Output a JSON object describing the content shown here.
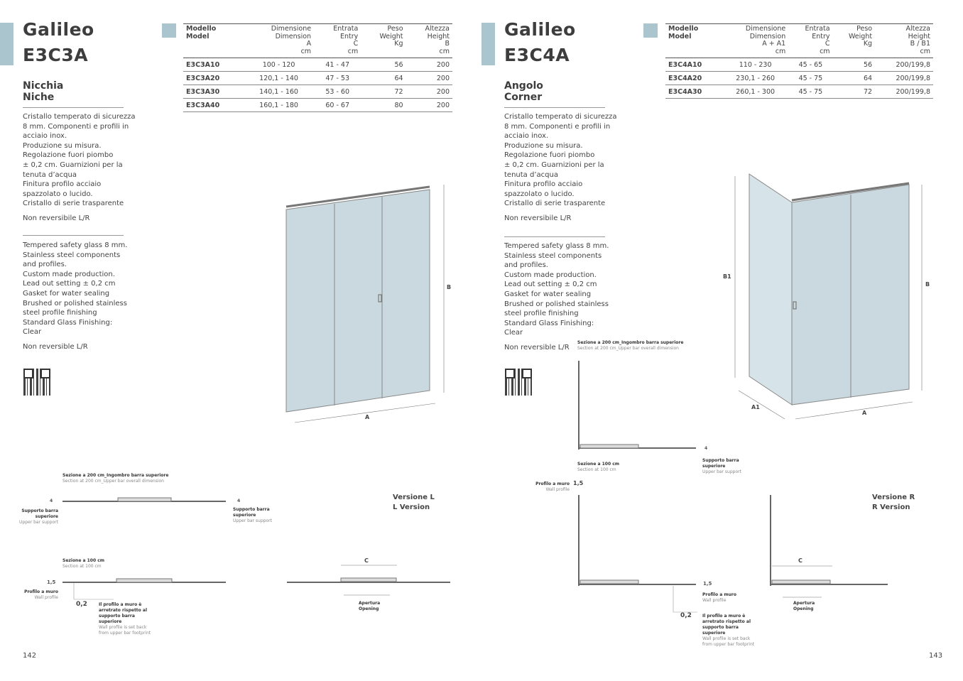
{
  "left": {
    "title_line1": "Galileo",
    "title_line2": "E3C3A",
    "type_it": "Nicchia",
    "type_en": "Niche",
    "desc_it": "Cristallo temperato di sicurezza\n8 mm. Componenti e profili in\nacciaio inox.\nProduzione su misura.\nRegolazione fuori piombo\n± 0,2 cm. Guarnizioni per la\ntenuta d’acqua\nFinitura profilo acciaio\nspazzolato o lucido.\nCristallo di serie trasparente",
    "rev_it": "Non reversibile L/R",
    "desc_en": "Tempered safety glass 8 mm.\nStainless steel components\nand profiles.\nCustom made production.\nLead out setting ± 0,2 cm\nGasket for water sealing\nBrushed or polished stainless\nsteel profile finishing\nStandard Glass Finishing:\nClear",
    "rev_en": "Non reversible L/R",
    "table": {
      "headers": [
        "Modello\nModel",
        "Dimensione\nDimension\nA\ncm",
        "Entrata\nEntry\nC\ncm",
        "Peso\nWeight\nKg",
        "Altezza\nHeight\nB\ncm"
      ],
      "rows": [
        [
          "E3C3A10",
          "100 - 120",
          "41 - 47",
          "56",
          "200"
        ],
        [
          "E3C3A20",
          "120,1 - 140",
          "47 - 53",
          "64",
          "200"
        ],
        [
          "E3C3A30",
          "140,1 - 160",
          "53 - 60",
          "72",
          "200"
        ],
        [
          "E3C3A40",
          "160,1 - 180",
          "60 - 67",
          "80",
          "200"
        ]
      ]
    },
    "dim_a": "A",
    "dim_b": "B",
    "sec200_it": "Sezione a 200 cm_Ingombro barra superiore",
    "sec200_en": "Section at 200 cm_Upper bar overall dimension",
    "support_it": "Supporto barra superiore",
    "support_en": "Upper bar support",
    "sec100_it": "Sezione a 100 cm",
    "sec100_en": "Section at 100 cm",
    "wall_it": "Profilo a muro",
    "wall_en": "Wall profile",
    "val_4": "4",
    "val_15": "1,5",
    "val_02": "0,2",
    "setback_it": "Il profilo a muro è arretrato rispetto al supporto barra superiore",
    "setback_en": "Wall profile is set back from upper bar footprint",
    "version_it": "Versione L",
    "version_en": "L Version",
    "dim_c": "C",
    "opening_it": "Apertura",
    "opening_en": "Opening",
    "page_number": "142"
  },
  "right": {
    "title_line1": "Galileo",
    "title_line2": "E3C4A",
    "type_it": "Angolo",
    "type_en": "Corner",
    "desc_it": "Cristallo temperato di sicurezza\n8 mm. Componenti e profili in\nacciaio inox.\nProduzione su misura.\nRegolazione fuori piombo\n± 0,2 cm. Guarnizioni per la\ntenuta d’acqua\nFinitura profilo acciaio\nspazzolato o lucido.\nCristallo di serie trasparente",
    "rev_it": "Non reversibile L/R",
    "desc_en": "Tempered safety glass 8 mm.\nStainless steel components\nand profiles.\nCustom made production.\nLead out setting ± 0,2 cm\nGasket for water sealing\nBrushed or polished stainless\nsteel profile finishing\nStandard Glass Finishing:\nClear",
    "rev_en": "Non reversible L/R",
    "table": {
      "headers": [
        "Modello\nModel",
        "Dimensione\nDimension\nA + A1\ncm",
        "Entrata\nEntry\nC\ncm",
        "Peso\nWeight\nKg",
        "Altezza\nHeight\nB / B1\ncm"
      ],
      "rows": [
        [
          "E3C4A10",
          "110 - 230",
          "45 - 65",
          "56",
          "200/199,8"
        ],
        [
          "E3C4A20",
          "230,1 - 260",
          "45 - 75",
          "64",
          "200/199,8"
        ],
        [
          "E3C4A30",
          "260,1 - 300",
          "45 - 75",
          "72",
          "200/199,8"
        ]
      ]
    },
    "dim_a": "A",
    "dim_a1": "A1",
    "dim_b": "B",
    "dim_b1": "B1",
    "sec200_it": "Sezione a 200 cm_Ingombro barra superiore",
    "sec200_en": "Section at 200 cm_Upper bar overall dimension",
    "support_it": "Supporto barra superiore",
    "support_en": "Upper bar support",
    "sec100_it": "Sezione a 100 cm",
    "sec100_en": "Section at 100 cm",
    "wall_it": "Profilo a muro",
    "wall_en": "Wall profile",
    "val_4": "4",
    "val_15": "1,5",
    "val_02": "0,2",
    "setback_it": "Il profilo a muro è arretrato rispetto al supporto barra superiore",
    "setback_en": "Wall profile is set back from upper bar footprint",
    "version_it": "Versione R",
    "version_en": "R Version",
    "dim_c": "C",
    "opening_it": "Apertura",
    "opening_en": "Opening",
    "page_number": "143"
  },
  "colors": {
    "accent": "#aac5ce",
    "glass": "#c9d9df"
  }
}
